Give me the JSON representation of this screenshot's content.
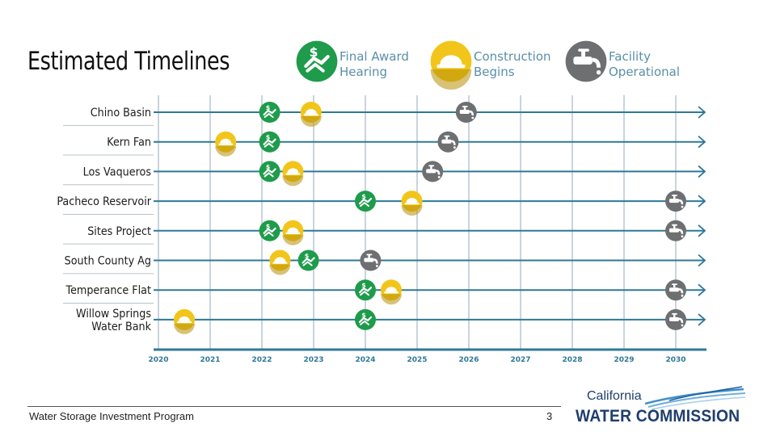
{
  "title": "Estimated Timelines",
  "footer": {
    "program": "Water Storage Investment Program",
    "page_number": "3"
  },
  "logo": {
    "line1": "California",
    "line2": "WATER COMMISSION"
  },
  "colors": {
    "green": "#1e9b4b",
    "yellow": "#f2c51a",
    "gray": "#6e6f71",
    "axis": "#2f7896",
    "grid": "#c9d4dc"
  },
  "chart_data": {
    "type": "timeline",
    "title": "Estimated Timelines",
    "x_range": [
      2020,
      2030
    ],
    "x_ticks": [
      "2020",
      "2021",
      "2022",
      "2023",
      "2024",
      "2025",
      "2026",
      "2027",
      "2028",
      "2029",
      "2030"
    ],
    "legend": [
      {
        "key": "award",
        "lines": [
          "Final Award",
          "Hearing"
        ],
        "icon": "handshake-dollar-icon"
      },
      {
        "key": "construction",
        "lines": [
          "Construction",
          "Begins"
        ],
        "icon": "hard-hat-icon"
      },
      {
        "key": "facility",
        "lines": [
          "Facility",
          "Operational"
        ],
        "icon": "water-faucet-icon"
      }
    ],
    "projects": [
      {
        "name": [
          "Chino Basin"
        ],
        "award": 2022.15,
        "construction": 2022.95,
        "facility": 2025.95
      },
      {
        "name": [
          "Kern Fan"
        ],
        "award": 2022.15,
        "construction": 2021.3,
        "facility": 2025.6
      },
      {
        "name": [
          "Los Vaqueros"
        ],
        "award": 2022.15,
        "construction": 2022.6,
        "facility": 2025.3
      },
      {
        "name": [
          "Pacheco Reservoir"
        ],
        "award": 2024.0,
        "construction": 2024.9,
        "facility": 2030.0
      },
      {
        "name": [
          "Sites Project"
        ],
        "award": 2022.15,
        "construction": 2022.6,
        "facility": 2030.0
      },
      {
        "name": [
          "South County Ag"
        ],
        "award": 2022.9,
        "construction": 2022.35,
        "facility": 2024.1
      },
      {
        "name": [
          "Temperance Flat"
        ],
        "award": 2024.0,
        "construction": 2024.5,
        "facility": 2030.0
      },
      {
        "name": [
          "Willow Springs",
          "Water Bank"
        ],
        "award": 2024.0,
        "construction": 2020.5,
        "facility": 2030.0
      }
    ]
  }
}
